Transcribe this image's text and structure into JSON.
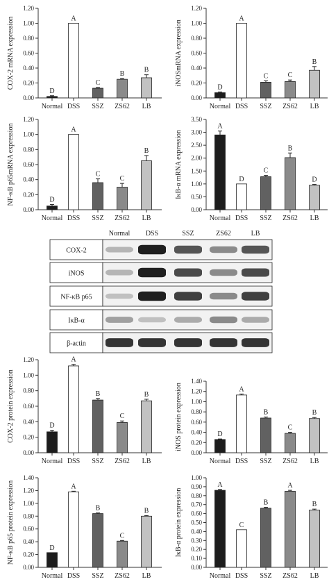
{
  "colors": {
    "Normal": "#1d1d1d",
    "DSS": "#ffffff",
    "SSZ": "#616161",
    "ZS62": "#8a8a8a",
    "LB": "#c2c2c2",
    "axis": "#333333"
  },
  "chart_data": [
    {
      "type": "bar",
      "categories": [
        "Normal",
        "DSS",
        "SSZ",
        "ZS62",
        "LB"
      ],
      "values": [
        0.02,
        1.0,
        0.13,
        0.25,
        0.27
      ],
      "errors": [
        0.01,
        0.0,
        0.01,
        0.01,
        0.04
      ],
      "labels": [
        "D",
        "A",
        "C",
        "B",
        "B"
      ],
      "ylabel": "COX-2 mRNA expression",
      "ylim": [
        0,
        1.2
      ],
      "yticks": [
        "0.00",
        "0.20",
        "0.40",
        "0.60",
        "0.80",
        "1.00",
        "1.20"
      ]
    },
    {
      "type": "bar",
      "categories": [
        "Normal",
        "DSS",
        "SSZ",
        "ZS62",
        "LB"
      ],
      "values": [
        0.07,
        1.0,
        0.21,
        0.22,
        0.37
      ],
      "errors": [
        0.01,
        0.0,
        0.02,
        0.02,
        0.05
      ],
      "labels": [
        "D",
        "A",
        "C",
        "C",
        "B"
      ],
      "ylabel": "iNOSmRNA expression",
      "ylim": [
        0,
        1.2
      ],
      "yticks": [
        "0.00",
        "0.20",
        "0.40",
        "0.60",
        "0.80",
        "1.00",
        "1.20"
      ]
    },
    {
      "type": "bar",
      "categories": [
        "Normal",
        "DSS",
        "SSZ",
        "ZS62",
        "LB"
      ],
      "values": [
        0.05,
        1.0,
        0.36,
        0.3,
        0.65
      ],
      "errors": [
        0.02,
        0.0,
        0.05,
        0.05,
        0.07
      ],
      "labels": [
        "D",
        "A",
        "C",
        "C",
        "B"
      ],
      "ylabel": "NF-κB p65mRNA expression",
      "ylim": [
        0,
        1.2
      ],
      "yticks": [
        "0.00",
        "0.20",
        "0.40",
        "0.60",
        "0.80",
        "1.00",
        "1.20"
      ]
    },
    {
      "type": "bar",
      "categories": [
        "Normal",
        "DSS",
        "SSZ",
        "ZS62",
        "LB"
      ],
      "values": [
        2.9,
        1.0,
        1.28,
        2.02,
        0.95
      ],
      "errors": [
        0.15,
        0.0,
        0.05,
        0.18,
        0.03
      ],
      "labels": [
        "A",
        "D",
        "C",
        "B",
        "D"
      ],
      "ylabel": "IκB-α mRNA expression",
      "ylim": [
        0,
        3.5
      ],
      "yticks": [
        "0.00",
        "0.50",
        "1.00",
        "1.50",
        "2.00",
        "2.50",
        "3.00",
        "3.50"
      ]
    },
    {
      "type": "bar",
      "categories": [
        "Normal",
        "DSS",
        "SSZ",
        "ZS62",
        "LB"
      ],
      "values": [
        0.27,
        1.12,
        0.68,
        0.39,
        0.67
      ],
      "errors": [
        0.02,
        0.02,
        0.02,
        0.02,
        0.02
      ],
      "labels": [
        "D",
        "A",
        "B",
        "C",
        "B"
      ],
      "ylabel": "COX-2 protein expression",
      "ylim": [
        0,
        1.2
      ],
      "yticks": [
        "0.00",
        "0.20",
        "0.40",
        "0.60",
        "0.80",
        "1.00",
        "1.20"
      ]
    },
    {
      "type": "bar",
      "categories": [
        "Normal",
        "DSS",
        "SSZ",
        "ZS62",
        "LB"
      ],
      "values": [
        0.26,
        1.13,
        0.68,
        0.38,
        0.67
      ],
      "errors": [
        0.01,
        0.02,
        0.02,
        0.02,
        0.02
      ],
      "labels": [
        "D",
        "A",
        "B",
        "C",
        "B"
      ],
      "ylabel": "iNOS protein expression",
      "ylim": [
        0,
        1.4
      ],
      "yticks": [
        "0.00",
        "0.20",
        "0.40",
        "0.60",
        "0.80",
        "1.00",
        "1.20",
        "1.40"
      ]
    },
    {
      "type": "bar",
      "categories": [
        "Normal",
        "DSS",
        "SSZ",
        "ZS62",
        "LB"
      ],
      "values": [
        0.23,
        1.18,
        0.84,
        0.41,
        0.8
      ],
      "errors": [
        0.0,
        0.01,
        0.01,
        0.01,
        0.01
      ],
      "labels": [
        "D",
        "A",
        "B",
        "C",
        "B"
      ],
      "ylabel": "NF-κB p65 protein expression",
      "ylim": [
        0,
        1.4
      ],
      "yticks": [
        "0.00",
        "0.20",
        "0.40",
        "0.60",
        "0.80",
        "1.00",
        "1.20",
        "1.40"
      ]
    },
    {
      "type": "bar",
      "categories": [
        "Normal",
        "DSS",
        "SSZ",
        "ZS62",
        "LB"
      ],
      "values": [
        0.86,
        0.42,
        0.66,
        0.85,
        0.64
      ],
      "errors": [
        0.01,
        0.0,
        0.01,
        0.01,
        0.01
      ],
      "labels": [
        "A",
        "C",
        "B",
        "A",
        "B"
      ],
      "ylabel": "IκB-α protein expression",
      "ylim": [
        0,
        1.0
      ],
      "yticks": [
        "0.00",
        "0.10",
        "0.20",
        "0.30",
        "0.40",
        "0.50",
        "0.60",
        "0.70",
        "0.80",
        "0.90",
        "1.00"
      ]
    }
  ],
  "western_blot": {
    "lanes": [
      "Normal",
      "DSS",
      "SSZ",
      "ZS62",
      "LB"
    ],
    "rows": [
      {
        "label": "COX-2",
        "intensity": [
          0.25,
          0.95,
          0.7,
          0.45,
          0.7
        ]
      },
      {
        "label": "iNOS",
        "intensity": [
          0.25,
          0.95,
          0.75,
          0.45,
          0.75
        ]
      },
      {
        "label": "NF-κB p65",
        "intensity": [
          0.2,
          0.95,
          0.8,
          0.45,
          0.8
        ]
      },
      {
        "label": "IκB-α",
        "intensity": [
          0.35,
          0.2,
          0.3,
          0.45,
          0.3
        ]
      },
      {
        "label": "β-actin",
        "intensity": [
          0.85,
          0.85,
          0.85,
          0.85,
          0.85
        ]
      }
    ]
  }
}
